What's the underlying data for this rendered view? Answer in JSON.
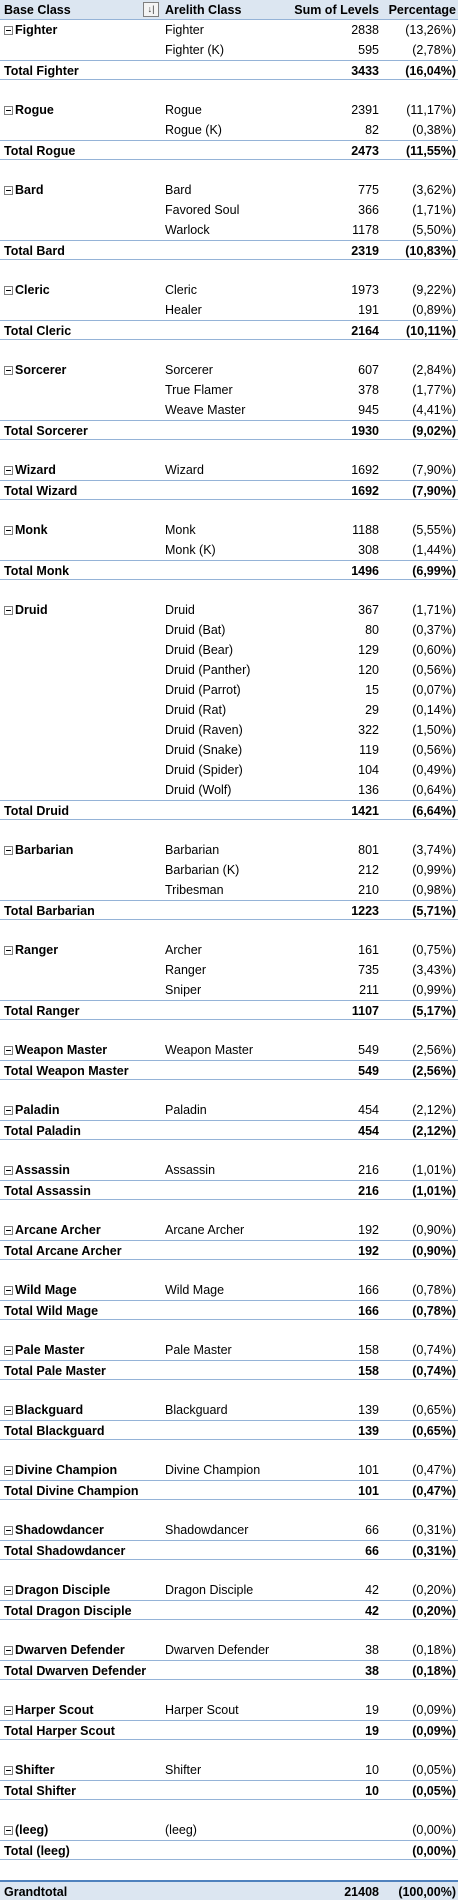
{
  "header": {
    "base_class": "Base Class",
    "arelith_class": "Arelith Class",
    "sum_of_levels": "Sum of Levels",
    "percentage": "Percentage",
    "filter_symbol": "↓|"
  },
  "groups": [
    {
      "base": "Fighter",
      "total_label": "Total Fighter",
      "total_sum": "3433",
      "total_pct": "(16,04%)",
      "items": [
        {
          "name": "Fighter",
          "sum": "2838",
          "pct": "(13,26%)"
        },
        {
          "name": "Fighter (K)",
          "sum": "595",
          "pct": "(2,78%)"
        }
      ]
    },
    {
      "base": "Rogue",
      "total_label": "Total Rogue",
      "total_sum": "2473",
      "total_pct": "(11,55%)",
      "items": [
        {
          "name": "Rogue",
          "sum": "2391",
          "pct": "(11,17%)"
        },
        {
          "name": "Rogue (K)",
          "sum": "82",
          "pct": "(0,38%)"
        }
      ]
    },
    {
      "base": "Bard",
      "total_label": "Total Bard",
      "total_sum": "2319",
      "total_pct": "(10,83%)",
      "items": [
        {
          "name": "Bard",
          "sum": "775",
          "pct": "(3,62%)"
        },
        {
          "name": "Favored Soul",
          "sum": "366",
          "pct": "(1,71%)"
        },
        {
          "name": "Warlock",
          "sum": "1178",
          "pct": "(5,50%)"
        }
      ]
    },
    {
      "base": "Cleric",
      "total_label": "Total Cleric",
      "total_sum": "2164",
      "total_pct": "(10,11%)",
      "items": [
        {
          "name": "Cleric",
          "sum": "1973",
          "pct": "(9,22%)"
        },
        {
          "name": "Healer",
          "sum": "191",
          "pct": "(0,89%)"
        }
      ]
    },
    {
      "base": "Sorcerer",
      "total_label": "Total Sorcerer",
      "total_sum": "1930",
      "total_pct": "(9,02%)",
      "items": [
        {
          "name": "Sorcerer",
          "sum": "607",
          "pct": "(2,84%)"
        },
        {
          "name": "True Flamer",
          "sum": "378",
          "pct": "(1,77%)"
        },
        {
          "name": "Weave Master",
          "sum": "945",
          "pct": "(4,41%)"
        }
      ]
    },
    {
      "base": "Wizard",
      "total_label": "Total Wizard",
      "total_sum": "1692",
      "total_pct": "(7,90%)",
      "items": [
        {
          "name": "Wizard",
          "sum": "1692",
          "pct": "(7,90%)"
        }
      ]
    },
    {
      "base": "Monk",
      "total_label": "Total Monk",
      "total_sum": "1496",
      "total_pct": "(6,99%)",
      "items": [
        {
          "name": "Monk",
          "sum": "1188",
          "pct": "(5,55%)"
        },
        {
          "name": "Monk (K)",
          "sum": "308",
          "pct": "(1,44%)"
        }
      ]
    },
    {
      "base": "Druid",
      "total_label": "Total Druid",
      "total_sum": "1421",
      "total_pct": "(6,64%)",
      "items": [
        {
          "name": "Druid",
          "sum": "367",
          "pct": "(1,71%)"
        },
        {
          "name": "Druid (Bat)",
          "sum": "80",
          "pct": "(0,37%)"
        },
        {
          "name": "Druid (Bear)",
          "sum": "129",
          "pct": "(0,60%)"
        },
        {
          "name": "Druid (Panther)",
          "sum": "120",
          "pct": "(0,56%)"
        },
        {
          "name": "Druid (Parrot)",
          "sum": "15",
          "pct": "(0,07%)"
        },
        {
          "name": "Druid (Rat)",
          "sum": "29",
          "pct": "(0,14%)"
        },
        {
          "name": "Druid (Raven)",
          "sum": "322",
          "pct": "(1,50%)"
        },
        {
          "name": "Druid (Snake)",
          "sum": "119",
          "pct": "(0,56%)"
        },
        {
          "name": "Druid (Spider)",
          "sum": "104",
          "pct": "(0,49%)"
        },
        {
          "name": "Druid (Wolf)",
          "sum": "136",
          "pct": "(0,64%)"
        }
      ]
    },
    {
      "base": "Barbarian",
      "total_label": "Total Barbarian",
      "total_sum": "1223",
      "total_pct": "(5,71%)",
      "items": [
        {
          "name": "Barbarian",
          "sum": "801",
          "pct": "(3,74%)"
        },
        {
          "name": "Barbarian (K)",
          "sum": "212",
          "pct": "(0,99%)"
        },
        {
          "name": "Tribesman",
          "sum": "210",
          "pct": "(0,98%)"
        }
      ]
    },
    {
      "base": "Ranger",
      "total_label": "Total Ranger",
      "total_sum": "1107",
      "total_pct": "(5,17%)",
      "items": [
        {
          "name": "Archer",
          "sum": "161",
          "pct": "(0,75%)"
        },
        {
          "name": "Ranger",
          "sum": "735",
          "pct": "(3,43%)"
        },
        {
          "name": "Sniper",
          "sum": "211",
          "pct": "(0,99%)"
        }
      ]
    },
    {
      "base": "Weapon Master",
      "total_label": "Total Weapon Master",
      "total_sum": "549",
      "total_pct": "(2,56%)",
      "items": [
        {
          "name": "Weapon Master",
          "sum": "549",
          "pct": "(2,56%)"
        }
      ]
    },
    {
      "base": "Paladin",
      "total_label": "Total Paladin",
      "total_sum": "454",
      "total_pct": "(2,12%)",
      "items": [
        {
          "name": "Paladin",
          "sum": "454",
          "pct": "(2,12%)"
        }
      ]
    },
    {
      "base": "Assassin",
      "total_label": "Total Assassin",
      "total_sum": "216",
      "total_pct": "(1,01%)",
      "items": [
        {
          "name": "Assassin",
          "sum": "216",
          "pct": "(1,01%)"
        }
      ]
    },
    {
      "base": "Arcane Archer",
      "total_label": "Total Arcane Archer",
      "total_sum": "192",
      "total_pct": "(0,90%)",
      "items": [
        {
          "name": "Arcane Archer",
          "sum": "192",
          "pct": "(0,90%)"
        }
      ]
    },
    {
      "base": "Wild Mage",
      "total_label": "Total Wild Mage",
      "total_sum": "166",
      "total_pct": "(0,78%)",
      "items": [
        {
          "name": "Wild Mage",
          "sum": "166",
          "pct": "(0,78%)"
        }
      ]
    },
    {
      "base": "Pale Master",
      "total_label": "Total Pale Master",
      "total_sum": "158",
      "total_pct": "(0,74%)",
      "items": [
        {
          "name": "Pale Master",
          "sum": "158",
          "pct": "(0,74%)"
        }
      ]
    },
    {
      "base": "Blackguard",
      "total_label": "Total Blackguard",
      "total_sum": "139",
      "total_pct": "(0,65%)",
      "items": [
        {
          "name": "Blackguard",
          "sum": "139",
          "pct": "(0,65%)"
        }
      ]
    },
    {
      "base": "Divine Champion",
      "total_label": "Total Divine Champion",
      "total_sum": "101",
      "total_pct": "(0,47%)",
      "items": [
        {
          "name": "Divine Champion",
          "sum": "101",
          "pct": "(0,47%)"
        }
      ]
    },
    {
      "base": "Shadowdancer",
      "total_label": "Total Shadowdancer",
      "total_sum": "66",
      "total_pct": "(0,31%)",
      "items": [
        {
          "name": "Shadowdancer",
          "sum": "66",
          "pct": "(0,31%)"
        }
      ]
    },
    {
      "base": "Dragon Disciple",
      "total_label": "Total Dragon Disciple",
      "total_sum": "42",
      "total_pct": "(0,20%)",
      "items": [
        {
          "name": "Dragon Disciple",
          "sum": "42",
          "pct": "(0,20%)"
        }
      ]
    },
    {
      "base": "Dwarven Defender",
      "total_label": "Total Dwarven Defender",
      "total_sum": "38",
      "total_pct": "(0,18%)",
      "items": [
        {
          "name": "Dwarven Defender",
          "sum": "38",
          "pct": "(0,18%)"
        }
      ]
    },
    {
      "base": "Harper Scout",
      "total_label": "Total Harper Scout",
      "total_sum": "19",
      "total_pct": "(0,09%)",
      "items": [
        {
          "name": "Harper Scout",
          "sum": "19",
          "pct": "(0,09%)"
        }
      ]
    },
    {
      "base": "Shifter",
      "total_label": "Total Shifter",
      "total_sum": "10",
      "total_pct": "(0,05%)",
      "items": [
        {
          "name": "Shifter",
          "sum": "10",
          "pct": "(0,05%)"
        }
      ]
    },
    {
      "base": "(leeg)",
      "total_label": "Total (leeg)",
      "total_sum": "",
      "total_pct": "(0,00%)",
      "items": [
        {
          "name": "(leeg)",
          "sum": "",
          "pct": "(0,00%)"
        }
      ]
    }
  ],
  "grand_total": {
    "label": "Grandtotal",
    "sum": "21408",
    "pct": "(100,00%)"
  },
  "colors": {
    "header_fill": "#dce6f1",
    "border": "#95b3d7",
    "grand_border": "#4f81bd"
  }
}
